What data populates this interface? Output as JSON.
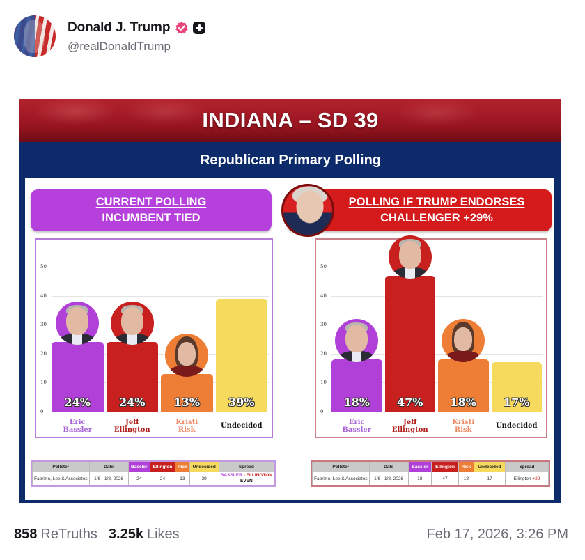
{
  "post": {
    "author": {
      "display_name": "Donald J. Trump",
      "handle": "@realDonaldTrump",
      "verified_icon": "verified-badge-icon",
      "plus_icon": "plus-badge-icon",
      "verified_color": "#e8457a"
    },
    "stats": {
      "retruths_count": "858",
      "retruths_label": "ReTruths",
      "likes_count": "3.25k",
      "likes_label": "Likes"
    },
    "timestamp": "Feb 17, 2026, 3:26 PM"
  },
  "poll_image": {
    "banner_title": "INDIANA – SD 39",
    "subtitle": "Republican Primary Polling",
    "left_panel": {
      "header_line1": "CURRENT POLLING",
      "header_line2": "INCUMBENT TIED",
      "color": "#b640dc"
    },
    "right_panel": {
      "header_line1": "POLLING IF TRUMP ENDORSES",
      "header_line2": "CHALLENGER +29%",
      "color": "#d51a1c"
    },
    "colors": {
      "bassler": "#b040d8",
      "ellington": "#c7201e",
      "risk": "#ee7e36",
      "undecided": "#f5da5e",
      "navy": "#0d2a6a"
    },
    "left_table": {
      "headers": [
        "Pollster",
        "Date",
        "Bassler",
        "Ellington",
        "Risk",
        "Undecided",
        "Spread"
      ],
      "row": [
        "Fabrizio, Lee & Associates",
        "1/6 - 1/8, 2026",
        "24",
        "24",
        "13",
        "39"
      ],
      "spread_part1": "BASSLER",
      "spread_sep": " - ",
      "spread_part2": "ELLINGTON",
      "spread_line2": "EVEN"
    },
    "right_table": {
      "headers": [
        "Pollster",
        "Date",
        "Bassler",
        "Ellington",
        "Risk",
        "Undecided",
        "Spread"
      ],
      "row": [
        "Fabrizio, Lee & Associates",
        "1/6 - 1/8, 2026",
        "18",
        "47",
        "18",
        "17"
      ],
      "spread_name": "Ellington ",
      "spread_value": "+29"
    }
  },
  "chart_data": [
    {
      "type": "bar",
      "title": "CURRENT POLLING — INCUMBENT TIED",
      "categories": [
        "Eric Bassler",
        "Jeff Ellington",
        "Kristi Risk",
        "Undecided"
      ],
      "category_lines": [
        [
          "Eric",
          "Bassler"
        ],
        [
          "Jeff",
          "Ellington"
        ],
        [
          "Kristi",
          "Risk"
        ],
        [
          "Undecided"
        ]
      ],
      "values": [
        24,
        24,
        13,
        39
      ],
      "value_labels": [
        "24%",
        "24%",
        "13%",
        "39%"
      ],
      "colors": [
        "#b040d8",
        "#c7201e",
        "#ee7e36",
        "#f5da5e"
      ],
      "yticks": [
        0,
        10,
        20,
        30,
        40,
        50
      ],
      "ylim": [
        0,
        58
      ],
      "grid": true,
      "xlabel": "",
      "ylabel": ""
    },
    {
      "type": "bar",
      "title": "POLLING IF TRUMP ENDORSES — CHALLENGER +29%",
      "categories": [
        "Eric Bassler",
        "Jeff Ellington",
        "Kristi Risk",
        "Undecided"
      ],
      "category_lines": [
        [
          "Eric",
          "Bassler"
        ],
        [
          "Jeff",
          "Ellington"
        ],
        [
          "Kristi",
          "Risk"
        ],
        [
          "Undecided"
        ]
      ],
      "values": [
        18,
        47,
        18,
        17
      ],
      "value_labels": [
        "18%",
        "47%",
        "18%",
        "17%"
      ],
      "colors": [
        "#b040d8",
        "#c7201e",
        "#ee7e36",
        "#f5da5e"
      ],
      "yticks": [
        0,
        10,
        20,
        30,
        40,
        50
      ],
      "ylim": [
        0,
        58
      ],
      "grid": true,
      "xlabel": "",
      "ylabel": ""
    }
  ]
}
